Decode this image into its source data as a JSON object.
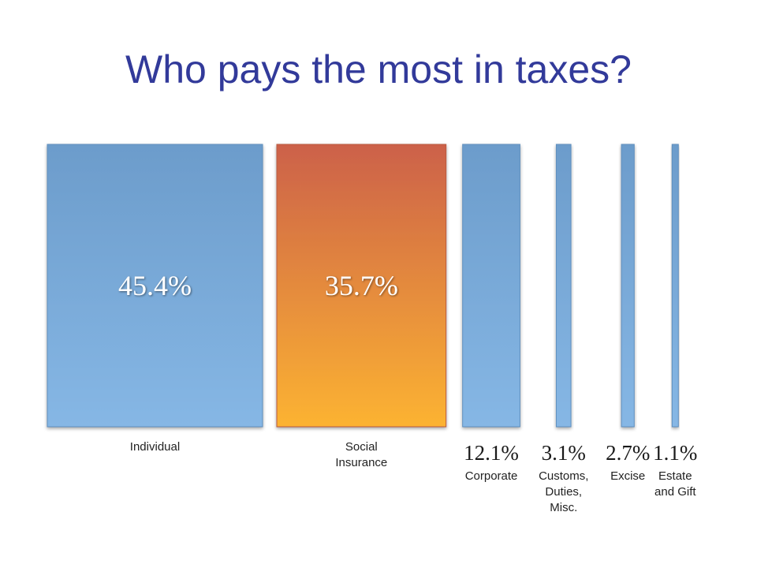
{
  "chart_data": {
    "type": "bar",
    "title": "Who pays the most in taxes?",
    "categories": [
      "Individual",
      "Social Insurance",
      "Corporate",
      "Customs, Duties, Misc.",
      "Excise",
      "Estate and Gift"
    ],
    "category_lines": [
      [
        "Individual"
      ],
      [
        "Social",
        "Insurance"
      ],
      [
        "Corporate"
      ],
      [
        "Customs,",
        "Duties,",
        "Misc."
      ],
      [
        "Excise"
      ],
      [
        "Estate",
        "and Gift"
      ]
    ],
    "values": [
      45.4,
      35.7,
      12.1,
      3.1,
      2.7,
      1.1
    ],
    "value_labels": [
      "45.4%",
      "35.7%",
      "12.1%",
      "3.1%",
      "2.7%",
      "1.1%"
    ],
    "encoding": "bar width proportional to share; all bars equal height",
    "colors": {
      "blue_top": "#6c9ccb",
      "blue_bottom": "#86b7e5",
      "orange_top": "#cc6149",
      "orange_bottom": "#fcb332",
      "highlight_category": "Social Insurance"
    },
    "xlabel": "",
    "ylabel": "",
    "grid": false,
    "legend": "none"
  }
}
